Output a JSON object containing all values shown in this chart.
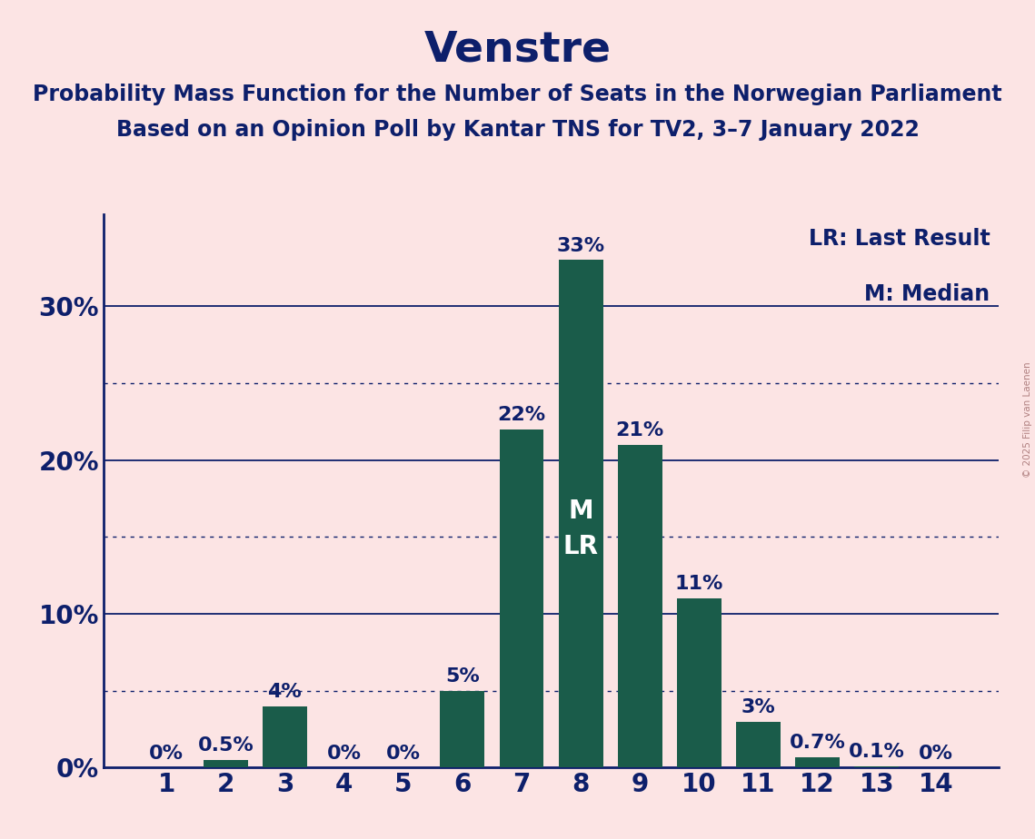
{
  "title": "Venstre",
  "subtitle1": "Probability Mass Function for the Number of Seats in the Norwegian Parliament",
  "subtitle2": "Based on an Opinion Poll by Kantar TNS for TV2, 3–7 January 2022",
  "copyright": "© 2025 Filip van Laenen",
  "legend_lr": "LR: Last Result",
  "legend_m": "M: Median",
  "categories": [
    1,
    2,
    3,
    4,
    5,
    6,
    7,
    8,
    9,
    10,
    11,
    12,
    13,
    14
  ],
  "values": [
    0.0,
    0.5,
    4.0,
    0.0,
    0.0,
    5.0,
    22.0,
    33.0,
    21.0,
    11.0,
    3.0,
    0.7,
    0.1,
    0.0
  ],
  "labels": [
    "0%",
    "0.5%",
    "4%",
    "0%",
    "0%",
    "5%",
    "22%",
    "33%",
    "21%",
    "11%",
    "3%",
    "0.7%",
    "0.1%",
    "0%"
  ],
  "bar_color": "#1a5c4a",
  "bar_inside_label": [
    "",
    "",
    "",
    "",
    "",
    "",
    "",
    "M\nLR",
    "",
    "",
    "",
    "",
    "",
    ""
  ],
  "background_color": "#fce4e4",
  "axis_color": "#0d1f6b",
  "text_color": "#0d1f6b",
  "bar_text_color": "#0d1f6b",
  "bar_inside_text_color": "#ffffff",
  "yticks": [
    0,
    10,
    20,
    30
  ],
  "ytick_labels": [
    "0%",
    "10%",
    "20%",
    "30%"
  ],
  "dotted_yticks": [
    5,
    15,
    25
  ],
  "ylim": [
    0,
    36
  ],
  "title_fontsize": 34,
  "subtitle_fontsize": 17,
  "axis_label_fontsize": 20,
  "bar_label_fontsize": 16,
  "bar_inside_fontsize": 20,
  "legend_fontsize": 17,
  "copyright_color": "#b08080"
}
